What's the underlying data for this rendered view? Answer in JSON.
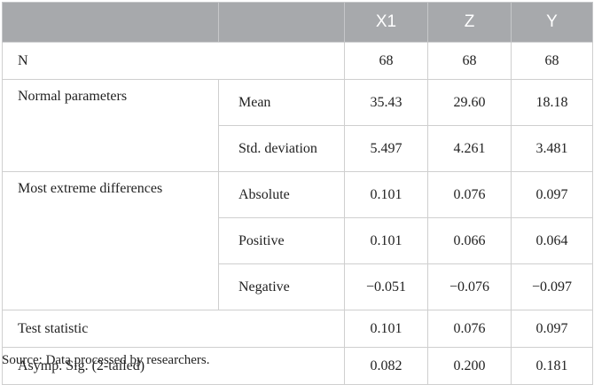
{
  "table": {
    "headers": [
      "",
      "",
      "X1",
      "Z",
      "Y"
    ],
    "rows": [
      {
        "group": "N",
        "stat": "",
        "values": [
          "68",
          "68",
          "68"
        ]
      },
      {
        "group": "Normal parameters",
        "stat": "Mean",
        "values": [
          "35.43",
          "29.60",
          "18.18"
        ]
      },
      {
        "group": "",
        "stat": "Std. deviation",
        "values": [
          "5.497",
          "4.261",
          "3.481"
        ]
      },
      {
        "group": "Most extreme differences",
        "stat": "Absolute",
        "values": [
          "0.101",
          "0.076",
          "0.097"
        ]
      },
      {
        "group": "",
        "stat": "Positive",
        "values": [
          "0.101",
          "0.066",
          "0.064"
        ]
      },
      {
        "group": "",
        "stat": "Negative",
        "values": [
          "−0.051",
          "−0.076",
          "−0.097"
        ]
      },
      {
        "group": "Test statistic",
        "stat": "",
        "values": [
          "0.101",
          "0.076",
          "0.097"
        ]
      },
      {
        "group": "Asymp. Sig. (2-tailed)",
        "stat": "",
        "values": [
          "0.082",
          "0.200",
          "0.181"
        ]
      }
    ]
  },
  "source": "Source: Data processed by researchers."
}
